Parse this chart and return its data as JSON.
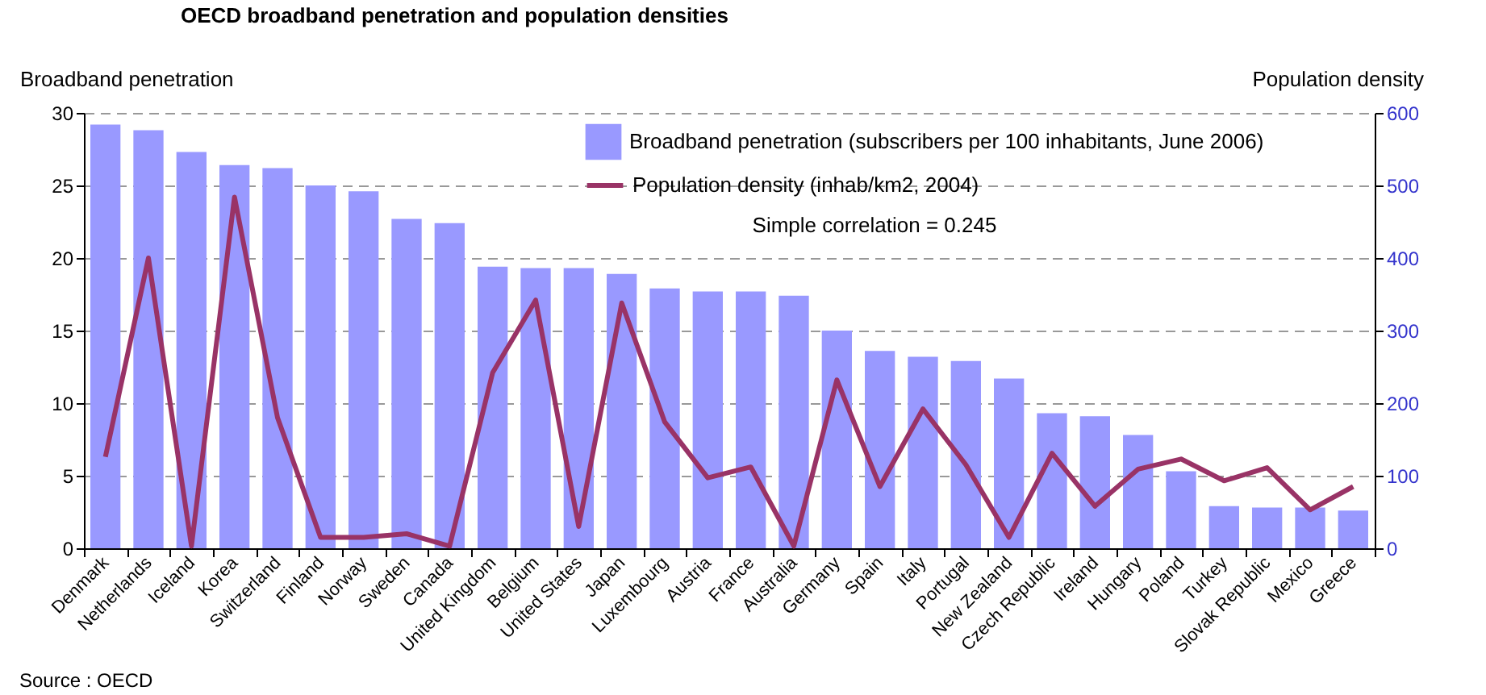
{
  "chart_data": {
    "type": "bar",
    "title": "OECD broadband penetration and population densities",
    "ylabel": "Broadband penetration",
    "y2label": "Population density",
    "categories": [
      "Denmark",
      "Netherlands",
      "Iceland",
      "Korea",
      "Switzerland",
      "Finland",
      "Norway",
      "Sweden",
      "Canada",
      "United Kingdom",
      "Belgium",
      "United States",
      "Japan",
      "Luxembourg",
      "Austria",
      "France",
      "Australia",
      "Germany",
      "Spain",
      "Italy",
      "Portugal",
      "New Zealand",
      "Czech Republic",
      "Ireland",
      "Hungary",
      "Poland",
      "Turkey",
      "Slovak Republic",
      "Mexico",
      "Greece"
    ],
    "series": [
      {
        "name": "Broadband penetration (subscribers per 100 inhabitants, June 2006)",
        "color": "#9999ff",
        "values": [
          29.2,
          28.8,
          27.3,
          26.4,
          26.2,
          25.0,
          24.6,
          22.7,
          22.4,
          19.4,
          19.3,
          19.3,
          18.9,
          17.9,
          17.7,
          17.7,
          17.4,
          15.0,
          13.6,
          13.2,
          12.9,
          11.7,
          9.3,
          9.1,
          7.8,
          5.3,
          2.9,
          2.8,
          2.8,
          2.6
        ]
      },
      {
        "name": "Population density (inhab/km2, 2004)",
        "type": "line",
        "axis": "y2",
        "color": "#993366",
        "values": [
          126,
          400,
          3,
          484,
          180,
          15,
          15,
          20,
          3,
          242,
          342,
          30,
          338,
          174,
          97,
          112,
          3,
          232,
          85,
          192,
          115,
          15,
          131,
          58,
          109,
          123,
          93,
          111,
          53,
          85
        ]
      }
    ],
    "ylim": [
      0,
      30
    ],
    "yticks": [
      0,
      5,
      10,
      15,
      20,
      25,
      30
    ],
    "y2lim": [
      0,
      600
    ],
    "y2ticks": [
      0,
      100,
      200,
      300,
      400,
      500,
      600
    ],
    "grid": "y",
    "legend": "top right",
    "annotations": [
      "Simple correlation = 0.245",
      "Source : OECD"
    ]
  }
}
